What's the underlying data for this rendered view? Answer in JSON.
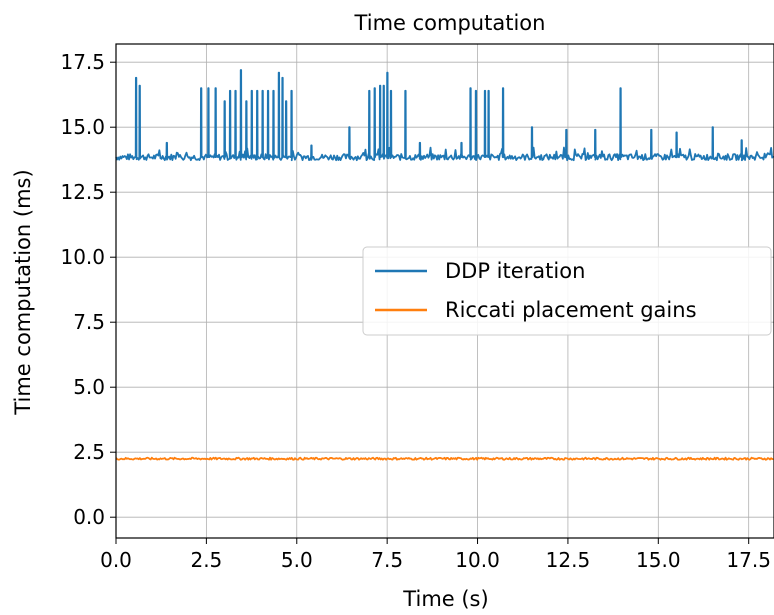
{
  "chart_data": {
    "type": "line",
    "title": "Time computation",
    "xlabel": "Time (s)",
    "ylabel": "Time computation (ms)",
    "xlim": [
      0,
      18.2
    ],
    "ylim": [
      -0.8,
      18.2
    ],
    "xticks": [
      "0.0",
      "2.5",
      "5.0",
      "7.5",
      "10.0",
      "12.5",
      "15.0",
      "17.5"
    ],
    "yticks": [
      "0.0",
      "2.5",
      "5.0",
      "7.5",
      "10.0",
      "12.5",
      "15.0",
      "17.5"
    ],
    "grid": true,
    "legend": "center-right",
    "series": [
      {
        "name": "DDP iteration",
        "color": "#1f77b4",
        "baseline": 13.85,
        "spikes": [
          {
            "x": 0.55,
            "y": 16.9
          },
          {
            "x": 0.65,
            "y": 16.6
          },
          {
            "x": 1.4,
            "y": 14.4
          },
          {
            "x": 2.35,
            "y": 16.5
          },
          {
            "x": 2.55,
            "y": 16.5
          },
          {
            "x": 2.75,
            "y": 16.5
          },
          {
            "x": 3.0,
            "y": 16.0
          },
          {
            "x": 3.15,
            "y": 16.4
          },
          {
            "x": 3.3,
            "y": 16.4
          },
          {
            "x": 3.45,
            "y": 17.2
          },
          {
            "x": 3.6,
            "y": 16.0
          },
          {
            "x": 3.75,
            "y": 16.4
          },
          {
            "x": 3.9,
            "y": 16.4
          },
          {
            "x": 4.05,
            "y": 16.4
          },
          {
            "x": 4.2,
            "y": 16.4
          },
          {
            "x": 4.35,
            "y": 16.4
          },
          {
            "x": 4.5,
            "y": 17.1
          },
          {
            "x": 4.6,
            "y": 16.9
          },
          {
            "x": 4.7,
            "y": 16.0
          },
          {
            "x": 4.85,
            "y": 16.4
          },
          {
            "x": 5.4,
            "y": 14.3
          },
          {
            "x": 6.45,
            "y": 15.0
          },
          {
            "x": 7.0,
            "y": 16.4
          },
          {
            "x": 7.15,
            "y": 16.5
          },
          {
            "x": 7.3,
            "y": 16.6
          },
          {
            "x": 7.4,
            "y": 16.6
          },
          {
            "x": 7.5,
            "y": 17.1
          },
          {
            "x": 7.6,
            "y": 16.4
          },
          {
            "x": 8.0,
            "y": 16.4
          },
          {
            "x": 8.4,
            "y": 14.4
          },
          {
            "x": 9.55,
            "y": 14.4
          },
          {
            "x": 9.8,
            "y": 16.5
          },
          {
            "x": 9.95,
            "y": 16.4
          },
          {
            "x": 10.2,
            "y": 16.4
          },
          {
            "x": 10.3,
            "y": 16.4
          },
          {
            "x": 10.7,
            "y": 16.5
          },
          {
            "x": 11.5,
            "y": 15.0
          },
          {
            "x": 12.45,
            "y": 14.9
          },
          {
            "x": 13.25,
            "y": 14.9
          },
          {
            "x": 13.95,
            "y": 16.5
          },
          {
            "x": 14.8,
            "y": 14.9
          },
          {
            "x": 15.5,
            "y": 14.8
          },
          {
            "x": 16.5,
            "y": 15.0
          },
          {
            "x": 17.3,
            "y": 14.5
          }
        ]
      },
      {
        "name": "Riccati placement gains",
        "color": "#ff7f0e",
        "baseline": 2.25
      }
    ]
  }
}
